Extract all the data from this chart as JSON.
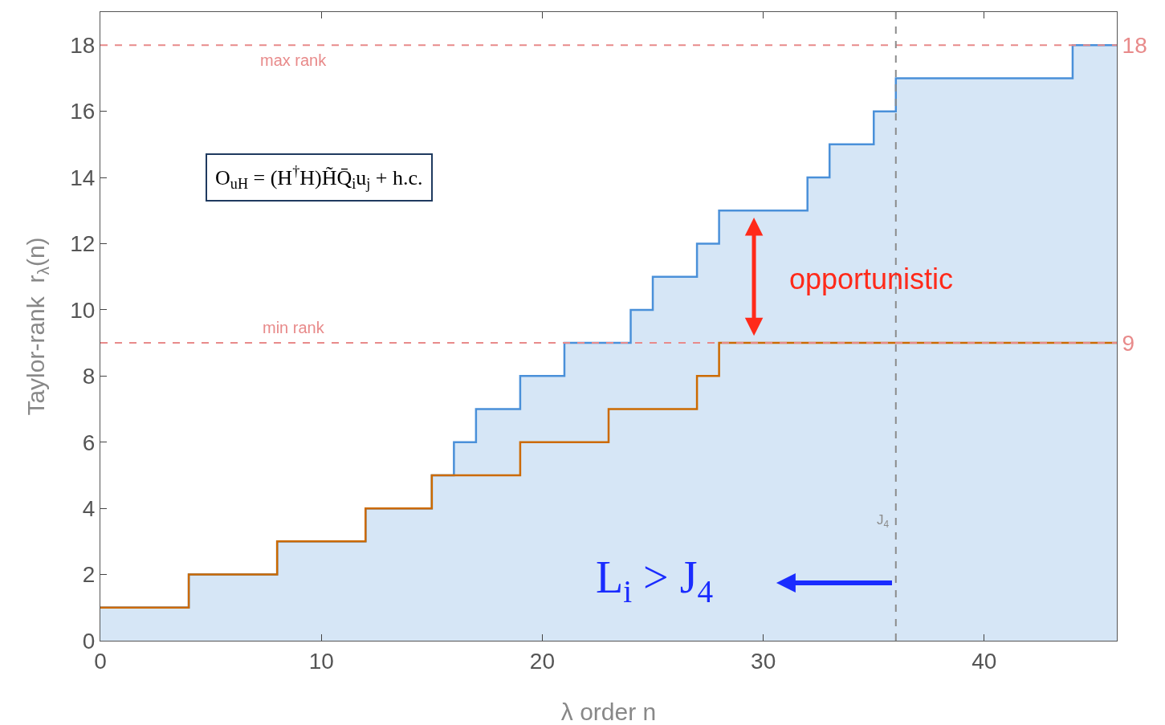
{
  "chart_data": {
    "type": "step",
    "xlabel": "λ order n",
    "ylabel": "Taylor-rank  r$_{λ}$(n)",
    "xlim": [
      0,
      46
    ],
    "xticks": [
      0,
      10,
      20,
      30,
      40
    ],
    "ylim": [
      0,
      19
    ],
    "yticks": [
      0,
      2,
      4,
      6,
      8,
      10,
      12,
      14,
      16,
      18
    ],
    "y2lim": [
      0,
      19
    ],
    "y2ticks": [
      9,
      18
    ],
    "series": [
      {
        "type": "area",
        "color": "#4a90d9",
        "x": [
          0,
          4,
          4,
          8,
          8,
          12,
          12,
          15,
          15,
          16,
          16,
          17,
          17,
          19,
          19,
          21,
          21,
          24,
          24,
          25,
          25,
          27,
          27,
          28,
          28,
          32,
          32,
          33,
          33,
          35,
          35,
          36,
          36,
          44,
          44,
          46
        ],
        "values": [
          1,
          1,
          2,
          2,
          3,
          3,
          4,
          4,
          5,
          5,
          6,
          6,
          7,
          7,
          8,
          8,
          9,
          9,
          10,
          10,
          11,
          11,
          12,
          12,
          13,
          13,
          14,
          14,
          15,
          15,
          16,
          16,
          17,
          17,
          18,
          18
        ]
      },
      {
        "color": "#cc6a00",
        "x": [
          0,
          4,
          8,
          12,
          15,
          19,
          23,
          27,
          28,
          46
        ],
        "values": [
          1,
          2,
          3,
          4,
          5,
          6,
          7,
          8,
          9,
          9
        ]
      }
    ],
    "ref_lines": [
      {
        "axis": "y",
        "value": 18,
        "label": "max rank",
        "color": "#e88a8a",
        "line_style": "dashed"
      },
      {
        "axis": "y",
        "value": 9,
        "label": "min rank",
        "color": "#e88a8a",
        "line_style": "dashed"
      },
      {
        "axis": "x",
        "value": 36,
        "label": "J$_{4}$",
        "color": "#8c8c8c",
        "line_style": "dashed"
      }
    ],
    "annotations": [
      "O$_{uH}$ = (H$^{†}$H)H̃Q̄$_{i}$u$_{j}$ + h.c.",
      "opportunistic",
      "L$_{i}$ > J$_{4}$"
    ],
    "grid": false
  }
}
